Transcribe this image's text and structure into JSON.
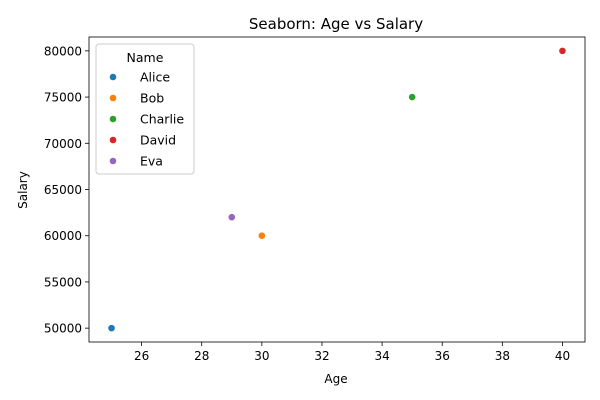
{
  "chart_data": {
    "type": "scatter",
    "title": "Seaborn: Age vs Salary",
    "xlabel": "Age",
    "ylabel": "Salary",
    "xlim": [
      24.25,
      40.75
    ],
    "ylim": [
      48500,
      81500
    ],
    "xticks": [
      26,
      28,
      30,
      32,
      34,
      36,
      38,
      40
    ],
    "yticks": [
      50000,
      55000,
      60000,
      65000,
      70000,
      75000,
      80000
    ],
    "grid": false,
    "legend": {
      "title": "Name",
      "placement": "top-left"
    },
    "series": [
      {
        "name": "Alice",
        "color": "#1f77b4",
        "x": [
          25
        ],
        "y": [
          50000
        ]
      },
      {
        "name": "Bob",
        "color": "#ff7f0e",
        "x": [
          30
        ],
        "y": [
          60000
        ]
      },
      {
        "name": "Charlie",
        "color": "#2ca02c",
        "x": [
          35
        ],
        "y": [
          75000
        ]
      },
      {
        "name": "David",
        "color": "#d62728",
        "x": [
          40
        ],
        "y": [
          80000
        ]
      },
      {
        "name": "Eva",
        "color": "#9467bd",
        "x": [
          29
        ],
        "y": [
          62000
        ]
      }
    ]
  }
}
